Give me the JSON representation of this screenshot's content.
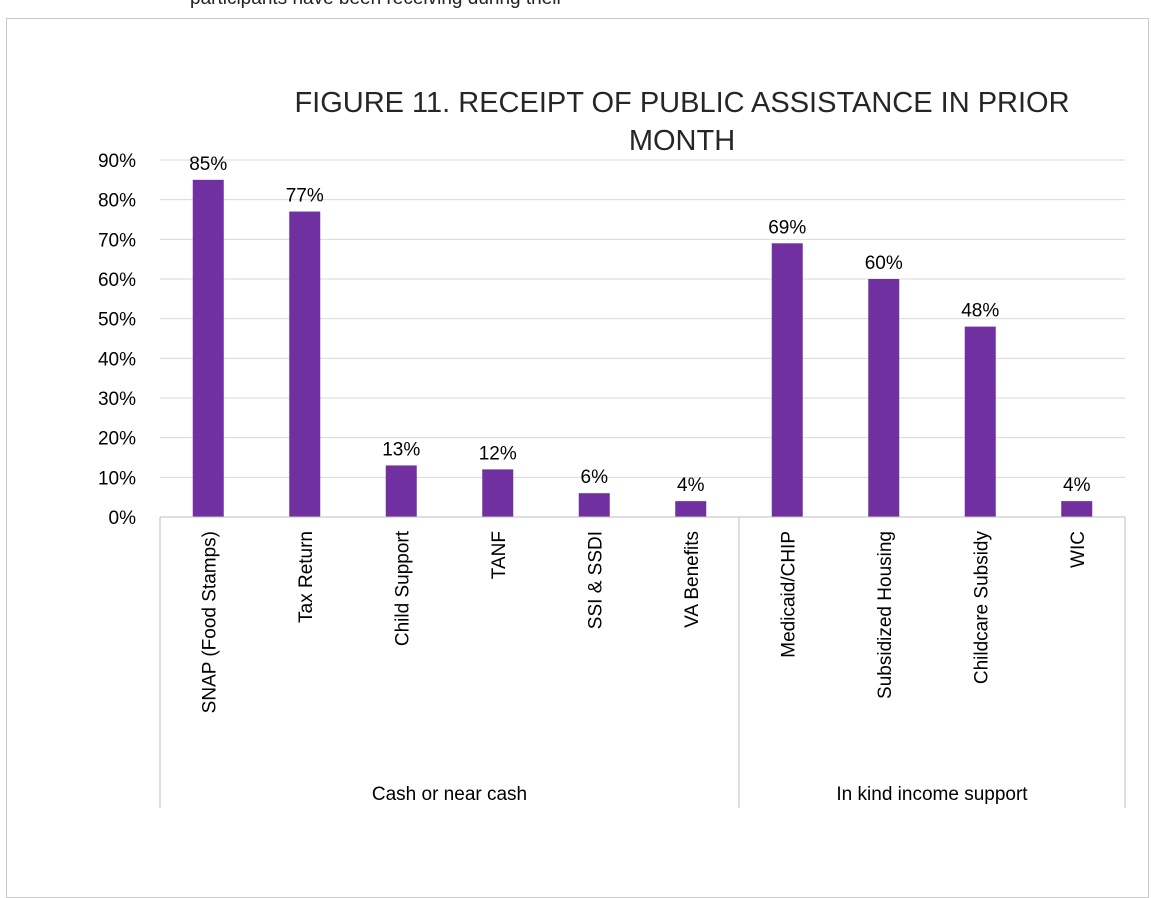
{
  "header_fragment": "participants have been receiving during their",
  "chart_data": {
    "type": "bar",
    "title": "FIGURE 11. RECEIPT OF PUBLIC ASSISTANCE IN PRIOR MONTH",
    "title_lines": [
      "FIGURE 11. RECEIPT OF PUBLIC ASSISTANCE IN PRIOR",
      "MONTH"
    ],
    "categories": [
      "SNAP (Food Stamps)",
      "Tax Return",
      "Child Support",
      "TANF",
      "SSI & SSDI",
      "VA Benefits",
      "Medicaid/CHIP",
      "Subsidized Housing",
      "Childcare Subsidy",
      "WIC"
    ],
    "values": [
      85,
      77,
      13,
      12,
      6,
      4,
      69,
      60,
      48,
      4
    ],
    "value_labels": [
      "85%",
      "77%",
      "13%",
      "12%",
      "6%",
      "4%",
      "69%",
      "60%",
      "48%",
      "4%"
    ],
    "groups": [
      {
        "label": "Cash or near cash",
        "count": 6
      },
      {
        "label": "In kind income support",
        "count": 4
      }
    ],
    "ylim": [
      0,
      90
    ],
    "y_ticks": [
      "0%",
      "10%",
      "20%",
      "30%",
      "40%",
      "50%",
      "60%",
      "70%",
      "80%",
      "90%"
    ],
    "xlabel": "",
    "ylabel": "",
    "grid": true,
    "bar_color": "#7030A0"
  }
}
